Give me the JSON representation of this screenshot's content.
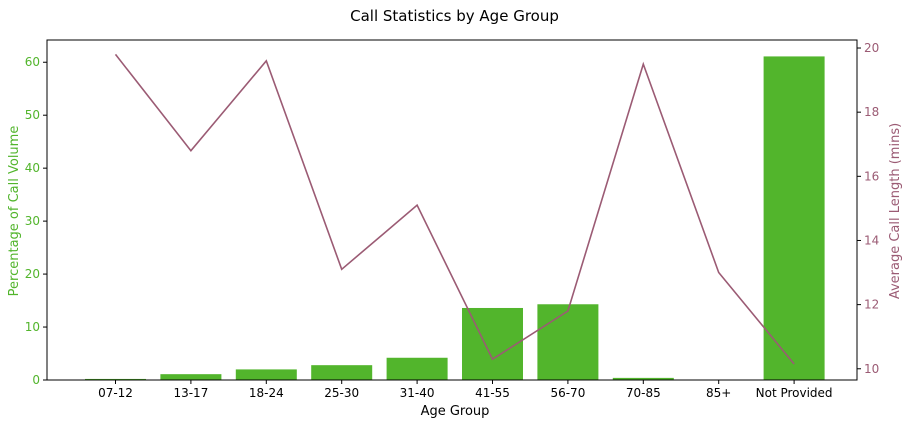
{
  "chart_data": {
    "type": "bar",
    "title": "Call Statistics by Age Group",
    "xlabel": "Age Group",
    "categories": [
      "07-12",
      "13-17",
      "18-24",
      "25-30",
      "31-40",
      "41-55",
      "56-70",
      "70-85",
      "85+",
      "Not Provided"
    ],
    "series": [
      {
        "type": "bar",
        "axis": "left",
        "color": "#52b52c",
        "values": [
          0.2,
          1.1,
          2.0,
          2.8,
          4.2,
          13.6,
          14.3,
          0.4,
          0.0,
          61.1
        ]
      },
      {
        "type": "line",
        "axis": "right",
        "color": "#9b5b74",
        "values": [
          19.8,
          16.8,
          19.6,
          13.1,
          15.1,
          10.3,
          11.8,
          19.5,
          13.0,
          10.15
        ]
      }
    ],
    "y_left": {
      "label": "Percentage of Call Volume",
      "color": "#52b52c",
      "lim": [
        0,
        64.2
      ],
      "ticks": [
        0,
        10,
        20,
        30,
        40,
        50,
        60
      ]
    },
    "y_right": {
      "label": "Average Call Length (mins)",
      "color": "#9b5b74",
      "lim": [
        9.65,
        20.25
      ],
      "ticks": [
        10,
        12,
        14,
        16,
        18,
        20
      ]
    },
    "grid": false
  }
}
